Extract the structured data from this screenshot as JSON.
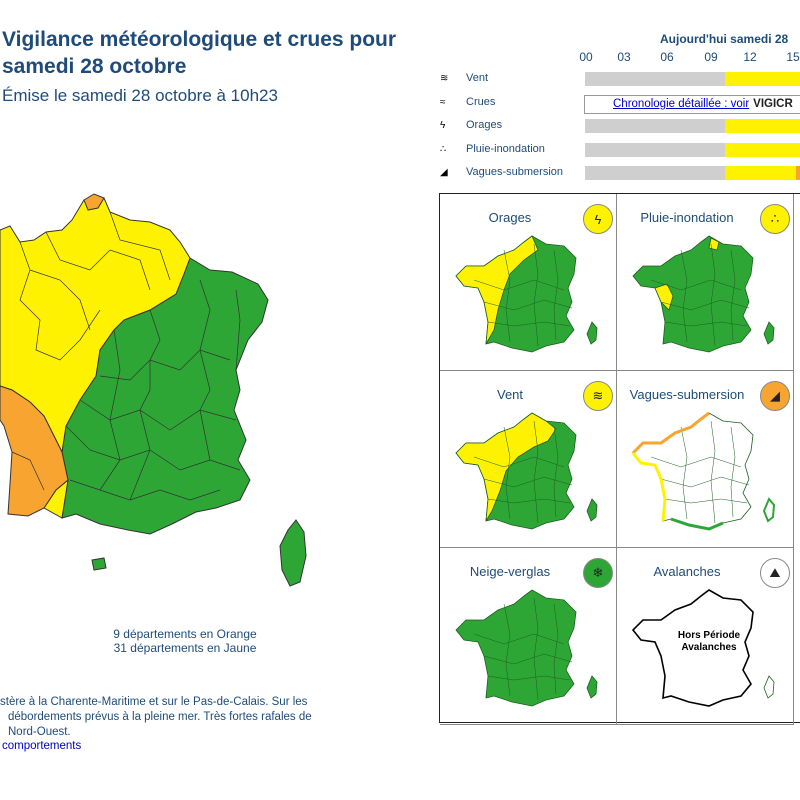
{
  "header": {
    "title": "Vigilance météorologique et crues pour samedi 28 octobre",
    "issued": "Émise le samedi 28 octobre à 10h23"
  },
  "colors": {
    "green": "#2ea635",
    "yellow": "#fff200",
    "orange": "#f7a431",
    "grey": "#cfcfcf",
    "title": "#1e4b7a"
  },
  "summary": {
    "orange": "9 départements en Orange",
    "yellow": "31 départements en Jaune"
  },
  "comment": {
    "line1": "stère à la Charente-Maritime et sur le Pas-de-Calais. Sur les",
    "line2": "débordements prévus à la pleine mer. Très fortes rafales de",
    "line3": "Nord-Ouest.",
    "link": "comportements"
  },
  "timeline": {
    "title": "Aujourd'hui samedi 28",
    "hours": [
      "00",
      "03",
      "06",
      "09",
      "12",
      "15"
    ],
    "chrono_link": "Chronologie détaillée : voir",
    "chrono_logo": "VIGICR",
    "rows": [
      {
        "label": "Vent",
        "icon": "wind-icon",
        "glyph": "≋",
        "bar": [
          [
            "grey",
            0.65
          ],
          [
            "yellow",
            0.35
          ]
        ]
      },
      {
        "label": "Crues",
        "icon": "flood-icon",
        "glyph": "≈",
        "bar": []
      },
      {
        "label": "Orages",
        "icon": "storm-icon",
        "glyph": "ϟ",
        "bar": [
          [
            "grey",
            0.65
          ],
          [
            "yellow",
            0.35
          ]
        ]
      },
      {
        "label": "Pluie-inondation",
        "icon": "rain-flood-icon",
        "glyph": "∴",
        "bar": [
          [
            "grey",
            0.65
          ],
          [
            "yellow",
            0.35
          ]
        ]
      },
      {
        "label": "Vagues-submersion",
        "icon": "waves-icon",
        "glyph": "◢",
        "bar": [
          [
            "grey",
            0.65
          ],
          [
            "yellow",
            0.33
          ],
          [
            "orange",
            0.02
          ]
        ]
      }
    ]
  },
  "maps": [
    {
      "name": "Orages",
      "icon": "storm-icon",
      "glyph": "ϟ",
      "badge": "yellow",
      "mode": "west-yellow"
    },
    {
      "name": "Pluie-inondation",
      "icon": "rain-flood-icon",
      "glyph": "∴",
      "badge": "yellow",
      "mode": "small-yellow"
    },
    {
      "name": "Vent",
      "icon": "wind-icon",
      "glyph": "≋",
      "badge": "yellow",
      "mode": "north-yellow"
    },
    {
      "name": "Vagues-submersion",
      "icon": "waves-icon",
      "glyph": "◢",
      "badge": "orange",
      "mode": "coast"
    },
    {
      "name": "Neige-verglas",
      "icon": "snow-icon",
      "glyph": "❄",
      "badge": "green",
      "mode": "all-green"
    },
    {
      "name": "Avalanches",
      "icon": "avalanche-icon",
      "glyph": "⛰",
      "badge": "white",
      "mode": "outline",
      "note1": "Hors Période",
      "note2": "Avalanches"
    }
  ]
}
